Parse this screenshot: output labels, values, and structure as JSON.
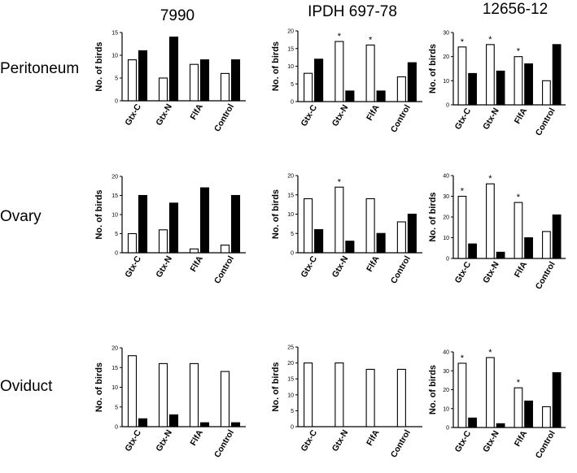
{
  "column_titles": [
    "7990",
    "IPDH 697-78",
    "12656-12"
  ],
  "row_labels": [
    "Peritoneum",
    "Ovary",
    "Oviduct"
  ],
  "legend": {
    "open_bar": "white",
    "filled_bar": "black"
  },
  "colors": {
    "axis": "#000000",
    "filled": "#000000",
    "open": "#ffffff"
  },
  "chart_data": [
    {
      "type": "bar",
      "title": "7990",
      "row": "Peritoneum",
      "ylabel": "No. of birds",
      "categories": [
        "Gtx-C",
        "Gtx-N",
        "FlfA",
        "Control"
      ],
      "ylim": [
        0,
        15
      ],
      "yticks": [
        0,
        5,
        10,
        15
      ],
      "series": [
        {
          "name": "open",
          "values": [
            9,
            5,
            8,
            6
          ]
        },
        {
          "name": "filled",
          "values": [
            11,
            14,
            9,
            9
          ]
        }
      ],
      "significance": [
        false,
        false,
        false,
        false
      ],
      "tick_font": 7
    },
    {
      "type": "bar",
      "title": "IPDH 697-78",
      "row": "Peritoneum",
      "ylabel": "No. of birds",
      "categories": [
        "Gtx-C",
        "Gtx-N",
        "FlfA",
        "Control"
      ],
      "ylim": [
        0,
        20
      ],
      "yticks": [
        0,
        5,
        10,
        15,
        20
      ],
      "series": [
        {
          "name": "open",
          "values": [
            8,
            17,
            16,
            7
          ]
        },
        {
          "name": "filled",
          "values": [
            12,
            3,
            3,
            11
          ]
        }
      ],
      "significance": [
        false,
        true,
        true,
        false
      ],
      "tick_font": 7
    },
    {
      "type": "bar",
      "title": "12656-12",
      "row": "Peritoneum",
      "ylabel": "No. of birds",
      "categories": [
        "Gtx-C",
        "Gtx-N",
        "FlfA",
        "Control"
      ],
      "ylim": [
        0,
        30
      ],
      "yticks": [
        0,
        10,
        20,
        30
      ],
      "series": [
        {
          "name": "open",
          "values": [
            24,
            25,
            20,
            10
          ]
        },
        {
          "name": "filled",
          "values": [
            13,
            14,
            17,
            25
          ]
        }
      ],
      "significance": [
        true,
        true,
        true,
        false
      ],
      "tick_font": 7
    },
    {
      "type": "bar",
      "title": "7990",
      "row": "Ovary",
      "ylabel": "No. of birds",
      "categories": [
        "Gtx-C",
        "Gtx-N",
        "FlfA",
        "Control"
      ],
      "ylim": [
        0,
        20
      ],
      "yticks": [
        0,
        5,
        10,
        15,
        20
      ],
      "series": [
        {
          "name": "open",
          "values": [
            5,
            6,
            1,
            2
          ]
        },
        {
          "name": "filled",
          "values": [
            15,
            13,
            17,
            15
          ]
        }
      ],
      "significance": [
        false,
        false,
        false,
        false
      ],
      "tick_font": 7
    },
    {
      "type": "bar",
      "title": "IPDH 697-78",
      "row": "Ovary",
      "ylabel": "No. of birds",
      "categories": [
        "Gtx-C",
        "Gtx-N",
        "FlfA",
        "Control"
      ],
      "ylim": [
        0,
        20
      ],
      "yticks": [
        0,
        5,
        10,
        15,
        20
      ],
      "series": [
        {
          "name": "open",
          "values": [
            14,
            17,
            14,
            8
          ]
        },
        {
          "name": "filled",
          "values": [
            6,
            3,
            5,
            10
          ]
        }
      ],
      "significance": [
        false,
        true,
        false,
        false
      ],
      "tick_font": 7
    },
    {
      "type": "bar",
      "title": "12656-12",
      "row": "Ovary",
      "ylabel": "No. of birds",
      "categories": [
        "Gtx-C",
        "Gtx-N",
        "FlfA",
        "Control"
      ],
      "ylim": [
        0,
        40
      ],
      "yticks": [
        0,
        10,
        20,
        30,
        40
      ],
      "series": [
        {
          "name": "open",
          "values": [
            30,
            36,
            27,
            13
          ]
        },
        {
          "name": "filled",
          "values": [
            7,
            3,
            10,
            21
          ]
        }
      ],
      "significance": [
        true,
        true,
        true,
        false
      ],
      "tick_font": 8.5
    },
    {
      "type": "bar",
      "title": "7990",
      "row": "Oviduct",
      "ylabel": "No. of birds",
      "categories": [
        "Gtx-C",
        "Gtx-N",
        "FlfA",
        "Control"
      ],
      "ylim": [
        0,
        20
      ],
      "yticks": [
        0,
        5,
        10,
        15,
        20
      ],
      "series": [
        {
          "name": "open",
          "values": [
            18,
            16,
            16,
            14
          ]
        },
        {
          "name": "filled",
          "values": [
            2,
            3,
            1,
            1
          ]
        }
      ],
      "significance": [
        false,
        false,
        false,
        false
      ],
      "tick_font": 7
    },
    {
      "type": "bar",
      "title": "IPDH 697-78",
      "row": "Oviduct",
      "ylabel": "No. of birds",
      "categories": [
        "Gtx-C",
        "Gtx-N",
        "FlfA",
        "Control"
      ],
      "ylim": [
        0,
        25
      ],
      "yticks": [
        0,
        5,
        10,
        15,
        20,
        25
      ],
      "series": [
        {
          "name": "open",
          "values": [
            20,
            20,
            18,
            18
          ]
        },
        {
          "name": "filled",
          "values": [
            0,
            0,
            0,
            0
          ]
        }
      ],
      "significance": [
        false,
        false,
        false,
        false
      ],
      "tick_font": 7
    },
    {
      "type": "bar",
      "title": "12656-12",
      "row": "Oviduct",
      "ylabel": "No. of birds",
      "categories": [
        "Gtx-C",
        "Gtx-N",
        "FlfA",
        "Control"
      ],
      "ylim": [
        0,
        40
      ],
      "yticks": [
        0,
        10,
        20,
        30,
        40
      ],
      "series": [
        {
          "name": "open",
          "values": [
            34,
            37,
            21,
            11
          ]
        },
        {
          "name": "filled",
          "values": [
            5,
            2,
            14,
            29
          ]
        }
      ],
      "significance": [
        true,
        true,
        true,
        false
      ],
      "tick_font": 8.5
    }
  ]
}
